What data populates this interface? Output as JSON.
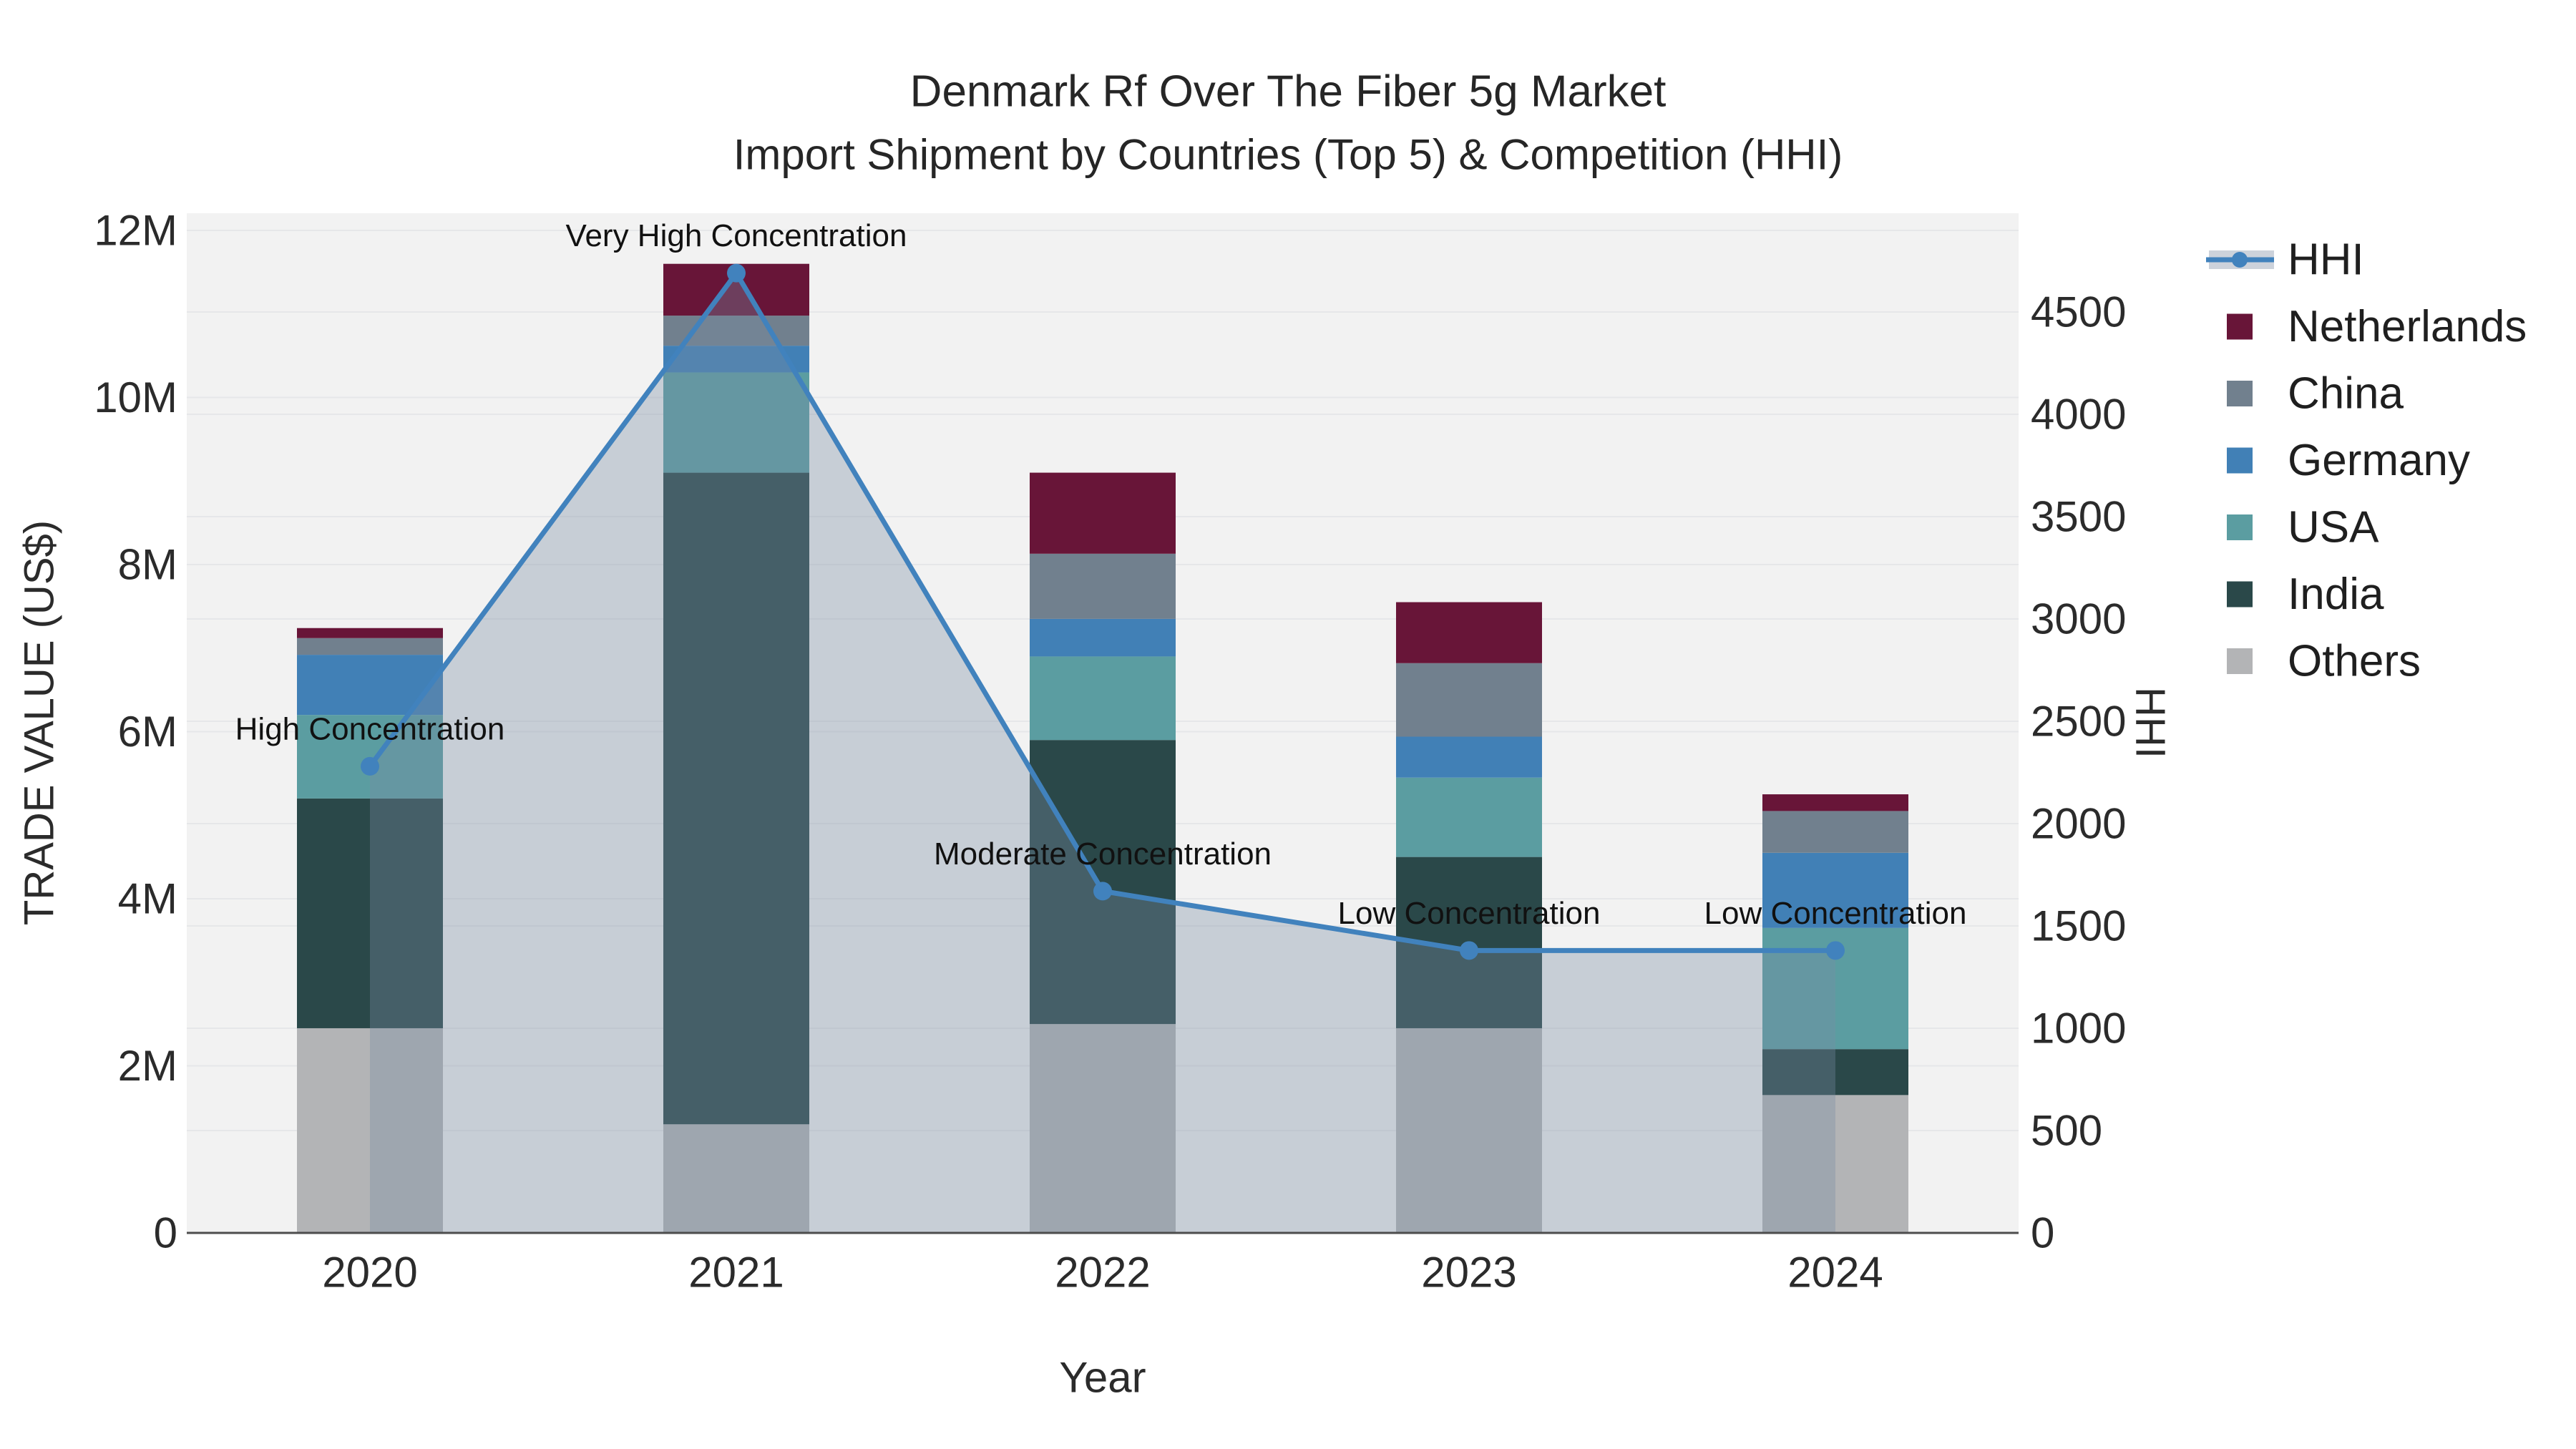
{
  "title": {
    "line1": "Denmark Rf Over The Fiber 5g Market",
    "line2": "Import Shipment by Countries (Top 5) & Competition (HHI)"
  },
  "axes": {
    "x": {
      "title": "Year",
      "tick_labels": [
        "2020",
        "2021",
        "2022",
        "2023",
        "2024"
      ]
    },
    "y_left": {
      "title": "TRADE VALUE (US$)",
      "tick_labels": [
        "0",
        "2M",
        "4M",
        "6M",
        "8M",
        "10M",
        "12M"
      ],
      "tick_values_musd": [
        0,
        2,
        4,
        6,
        8,
        10,
        12
      ]
    },
    "y_right": {
      "title": "HHI",
      "tick_labels": [
        "0",
        "500",
        "1000",
        "1500",
        "2000",
        "2500",
        "3000",
        "3500",
        "4000",
        "4500"
      ],
      "tick_values": [
        0,
        500,
        1000,
        1500,
        2000,
        2500,
        3000,
        3500,
        4000,
        4500
      ]
    }
  },
  "legend": {
    "items": [
      {
        "label": "HHI",
        "swatch": "line-sample",
        "series": "HHI"
      },
      {
        "label": "Netherlands",
        "swatch": "square",
        "series": "Netherlands"
      },
      {
        "label": "China",
        "swatch": "square",
        "series": "China"
      },
      {
        "label": "Germany",
        "swatch": "square",
        "series": "Germany"
      },
      {
        "label": "USA",
        "swatch": "square",
        "series": "USA"
      },
      {
        "label": "India",
        "swatch": "square",
        "series": "India"
      },
      {
        "label": "Others",
        "swatch": "square",
        "series": "Others"
      }
    ]
  },
  "colors": {
    "Netherlands": "#681538",
    "China": "#71808e",
    "Germany": "#4180b6",
    "USA": "#5b9da1",
    "India": "#2a4849",
    "Others": "#b3b4b6",
    "hhi_line": "#4182bd",
    "hhi_area": "rgba(120,140,162,0.35)",
    "hhi_legend_band": "#ccd2db",
    "plot_bg": "#f2f2f2",
    "grid": "#e6e7e9",
    "axis_line": "#4d4d4d",
    "text": "#262626"
  },
  "chart_data": {
    "type": "bar",
    "subtype": "stacked-bars-with-line-overlay",
    "title": "Denmark Rf Over The Fiber 5g Market — Import Shipment by Countries (Top 5) & Competition (HHI)",
    "categories": [
      "2020",
      "2021",
      "2022",
      "2023",
      "2024"
    ],
    "series": [
      {
        "name": "Others",
        "type": "bar-stack",
        "stack_index": 0,
        "values_musd": [
          2.45,
          1.3,
          2.5,
          2.45,
          1.65
        ]
      },
      {
        "name": "India",
        "type": "bar-stack",
        "stack_index": 1,
        "values_musd": [
          2.75,
          7.8,
          3.4,
          2.05,
          0.55
        ]
      },
      {
        "name": "USA",
        "type": "bar-stack",
        "stack_index": 2,
        "values_musd": [
          1.0,
          1.2,
          1.0,
          0.95,
          1.45
        ]
      },
      {
        "name": "Germany",
        "type": "bar-stack",
        "stack_index": 3,
        "values_musd": [
          0.72,
          0.32,
          0.45,
          0.49,
          0.9
        ]
      },
      {
        "name": "China",
        "type": "bar-stack",
        "stack_index": 4,
        "values_musd": [
          0.2,
          0.36,
          0.78,
          0.88,
          0.5
        ]
      },
      {
        "name": "Netherlands",
        "type": "bar-stack",
        "stack_index": 5,
        "values_musd": [
          0.12,
          0.62,
          0.97,
          0.73,
          0.2
        ]
      },
      {
        "name": "HHI",
        "type": "line",
        "axis": "right",
        "values": [
          2280,
          4690,
          1670,
          1380,
          1380
        ],
        "has_area_fill": true,
        "has_markers": true
      }
    ],
    "bar_totals_musd": [
      7.24,
      11.6,
      9.1,
      7.55,
      5.25
    ],
    "annotations": [
      {
        "category": "2020",
        "text": "High Concentration"
      },
      {
        "category": "2021",
        "text": "Very High Concentration"
      },
      {
        "category": "2022",
        "text": "Moderate Concentration"
      },
      {
        "category": "2023",
        "text": "Low Concentration"
      },
      {
        "category": "2024",
        "text": "Low Concentration"
      }
    ],
    "xlabel": "Year",
    "ylabel": "TRADE VALUE (US$)",
    "ylabel_right": "HHI",
    "ylim_left_musd": [
      0,
      12.2
    ],
    "ylim_right": [
      0,
      5000
    ],
    "legend_position": "right",
    "grid": "on"
  }
}
